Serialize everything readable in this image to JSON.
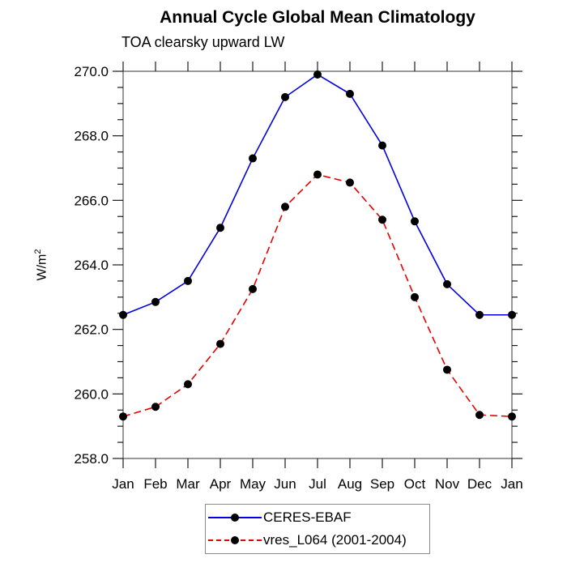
{
  "chart_data": {
    "type": "line",
    "title": "Annual Cycle Global Mean Climatology",
    "subtitle": "TOA clearsky upward LW",
    "ylabel_base": "W/m",
    "ylabel_exponent": "2",
    "categories": [
      "Jan",
      "Feb",
      "Mar",
      "Apr",
      "May",
      "Jun",
      "Jul",
      "Aug",
      "Sep",
      "Oct",
      "Nov",
      "Dec",
      "Jan"
    ],
    "series": [
      {
        "name": "CERES-EBAF",
        "line_color": "#0000e0",
        "line_style": "solid",
        "marker": "filled-circle",
        "marker_color": "#000000",
        "values": [
          262.45,
          262.85,
          263.5,
          265.15,
          267.3,
          269.2,
          269.9,
          269.3,
          267.7,
          265.35,
          263.4,
          262.45,
          262.45
        ]
      },
      {
        "name": "vres_L064 (2001-2004)",
        "line_color": "#e80000",
        "line_style": "dashed",
        "marker": "filled-circle",
        "marker_color": "#000000",
        "values": [
          259.3,
          259.6,
          260.3,
          261.55,
          263.25,
          265.8,
          266.8,
          266.55,
          265.4,
          263.0,
          260.75,
          259.35,
          259.3
        ]
      }
    ],
    "ylim": [
      258.0,
      270.0
    ],
    "ytick_step": 2.0,
    "yminor_step": 0.5,
    "ytick_labels": [
      "258.0",
      "260.0",
      "262.0",
      "264.0",
      "266.0",
      "268.0",
      "270.0"
    ],
    "grid": false,
    "legend_position": "bottom-center",
    "frame": "box-with-outward-ticks"
  }
}
